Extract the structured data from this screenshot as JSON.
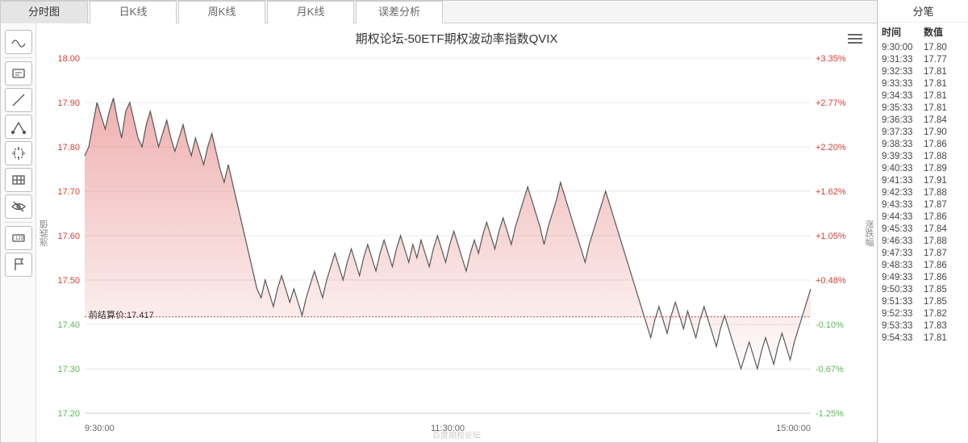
{
  "tabs": [
    "分时图",
    "日K线",
    "周K线",
    "月K线",
    "误差分析"
  ],
  "active_tab": 0,
  "chart": {
    "title": "期权论坛-50ETF期权波动率指数QVIX",
    "y_left_label": "涨跌值",
    "y_right_label": "涨跌幅",
    "footer": "百度期权论坛",
    "settlement_label": "前结算价:17.417",
    "settlement_value": 17.417,
    "x_ticks": [
      "9:30:00",
      "11:30:00",
      "15:00:00"
    ],
    "y_left_ticks": [
      18.0,
      17.9,
      17.8,
      17.7,
      17.6,
      17.5,
      17.4,
      17.3,
      17.2
    ],
    "y_left_tick_colors": [
      "#d43f3a",
      "#d43f3a",
      "#d43f3a",
      "#d43f3a",
      "#d43f3a",
      "#d43f3a",
      "#5cb85c",
      "#5cb85c",
      "#5cb85c"
    ],
    "y_right_ticks": [
      "+3.35%",
      "+2.77%",
      "+2.20%",
      "+1.62%",
      "+1.05%",
      "+0.48%",
      "-0.10%",
      "-0.67%",
      "-1.25%"
    ],
    "y_right_tick_colors": [
      "#d43f3a",
      "#d43f3a",
      "#d43f3a",
      "#d43f3a",
      "#d43f3a",
      "#d43f3a",
      "#5cb85c",
      "#5cb85c",
      "#5cb85c"
    ],
    "colors": {
      "line": "#555555",
      "fill_top": "rgba(220,80,80,0.45)",
      "fill_bottom": "rgba(220,80,80,0.02)",
      "settlement_line": "#d43f3a",
      "grid": "#e8e8e8",
      "background": "#ffffff",
      "green_fill": "rgba(100,200,120,0.25)"
    },
    "ylim": [
      17.2,
      18.0
    ],
    "series": [
      17.78,
      17.8,
      17.85,
      17.9,
      17.87,
      17.84,
      17.88,
      17.91,
      17.86,
      17.82,
      17.88,
      17.9,
      17.86,
      17.82,
      17.8,
      17.85,
      17.88,
      17.84,
      17.8,
      17.83,
      17.86,
      17.82,
      17.79,
      17.82,
      17.85,
      17.81,
      17.78,
      17.82,
      17.79,
      17.76,
      17.8,
      17.83,
      17.79,
      17.75,
      17.72,
      17.76,
      17.72,
      17.68,
      17.64,
      17.6,
      17.56,
      17.52,
      17.48,
      17.46,
      17.5,
      17.47,
      17.44,
      17.48,
      17.51,
      17.48,
      17.45,
      17.48,
      17.45,
      17.42,
      17.46,
      17.49,
      17.52,
      17.49,
      17.46,
      17.5,
      17.53,
      17.56,
      17.53,
      17.5,
      17.54,
      17.57,
      17.54,
      17.51,
      17.55,
      17.58,
      17.55,
      17.52,
      17.56,
      17.59,
      17.56,
      17.53,
      17.57,
      17.6,
      17.57,
      17.54,
      17.58,
      17.55,
      17.59,
      17.56,
      17.53,
      17.57,
      17.6,
      17.57,
      17.54,
      17.58,
      17.61,
      17.58,
      17.55,
      17.52,
      17.56,
      17.59,
      17.56,
      17.6,
      17.63,
      17.6,
      17.57,
      17.61,
      17.64,
      17.61,
      17.58,
      17.62,
      17.65,
      17.68,
      17.71,
      17.68,
      17.65,
      17.62,
      17.58,
      17.62,
      17.65,
      17.68,
      17.72,
      17.69,
      17.66,
      17.63,
      17.6,
      17.57,
      17.54,
      17.58,
      17.61,
      17.64,
      17.67,
      17.7,
      17.67,
      17.64,
      17.61,
      17.58,
      17.55,
      17.52,
      17.49,
      17.46,
      17.43,
      17.4,
      17.37,
      17.41,
      17.44,
      17.41,
      17.38,
      17.42,
      17.45,
      17.42,
      17.39,
      17.43,
      17.4,
      17.37,
      17.41,
      17.44,
      17.41,
      17.38,
      17.35,
      17.39,
      17.42,
      17.39,
      17.36,
      17.33,
      17.3,
      17.33,
      17.36,
      17.33,
      17.3,
      17.34,
      17.37,
      17.34,
      17.31,
      17.35,
      17.38,
      17.35,
      17.32,
      17.36,
      17.39,
      17.42,
      17.45,
      17.48
    ]
  },
  "ticks_panel": {
    "title": "分笔",
    "head_time": "时间",
    "head_value": "数值",
    "rows": [
      [
        "9:30:00",
        "17.80"
      ],
      [
        "9:31:33",
        "17.77"
      ],
      [
        "9:32:33",
        "17.81"
      ],
      [
        "9:33:33",
        "17.81"
      ],
      [
        "9:34:33",
        "17.81"
      ],
      [
        "9:35:33",
        "17.81"
      ],
      [
        "9:36:33",
        "17.84"
      ],
      [
        "9:37:33",
        "17.90"
      ],
      [
        "9:38:33",
        "17.86"
      ],
      [
        "9:39:33",
        "17.88"
      ],
      [
        "9:40:33",
        "17.89"
      ],
      [
        "9:41:33",
        "17.91"
      ],
      [
        "9:42:33",
        "17.88"
      ],
      [
        "9:43:33",
        "17.87"
      ],
      [
        "9:44:33",
        "17.86"
      ],
      [
        "9:45:33",
        "17.84"
      ],
      [
        "9:46:33",
        "17.88"
      ],
      [
        "9:47:33",
        "17.87"
      ],
      [
        "9:48:33",
        "17.86"
      ],
      [
        "9:49:33",
        "17.86"
      ],
      [
        "9:50:33",
        "17.85"
      ],
      [
        "9:51:33",
        "17.85"
      ],
      [
        "9:52:33",
        "17.82"
      ],
      [
        "9:53:33",
        "17.83"
      ],
      [
        "9:54:33",
        "17.81"
      ]
    ]
  },
  "tool_icons": [
    "wave",
    "divider",
    "txt",
    "line",
    "angle",
    "crosshair",
    "grid",
    "eye",
    "divider",
    "counter",
    "flag"
  ]
}
